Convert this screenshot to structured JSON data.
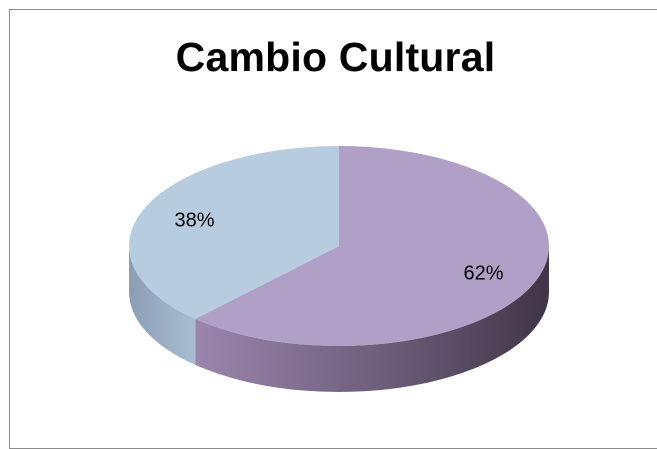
{
  "chart_data": {
    "type": "pie",
    "title": "Cambio Cultural",
    "three_d": true,
    "legend": "none",
    "slices": [
      {
        "value": 62,
        "label": "62%",
        "color": "#b09fc6"
      },
      {
        "value": 38,
        "label": "38%",
        "color": "#b8cce0"
      }
    ]
  }
}
